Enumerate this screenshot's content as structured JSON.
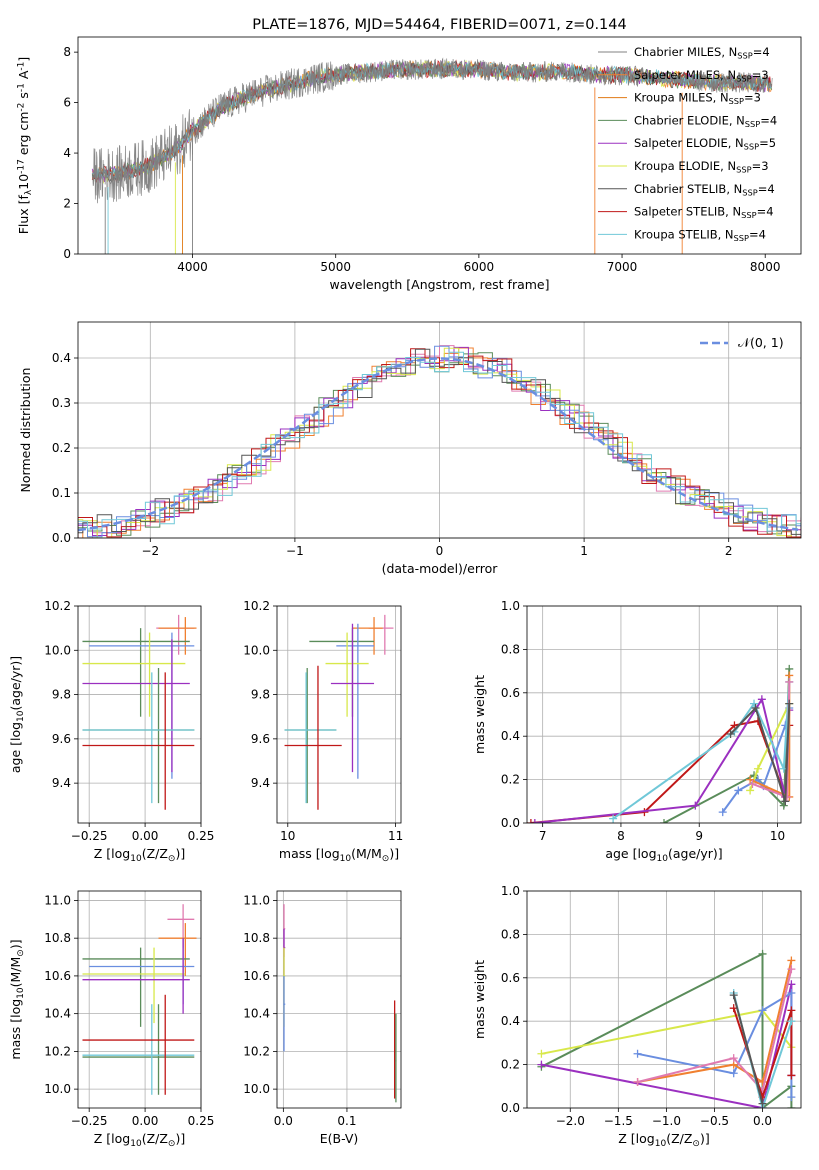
{
  "colors": {
    "Chabrier MILES": "#808080",
    "Salpeter MILES": "#f08030",
    "Kroupa MILES": "#e07a14",
    "Chabrier ELODIE": "#5a8c5a",
    "Salpeter ELODIE": "#9b30c0",
    "Kroupa ELODIE": "#d8e84a",
    "Chabrier STELIB": "#555555",
    "Salpeter STELIB": "#c01818",
    "Kroupa STELIB": "#70c8d8",
    "pink": "#e07ab0",
    "blue": "#6a8ee0",
    "gaussian": "#6a8ee0"
  },
  "chart_data": [
    {
      "id": "spectrum",
      "type": "line",
      "title": "PLATE=1876, MJD=54464, FIBERID=0071, z=0.144",
      "xlabel": "wavelength [Angstrom, rest frame]",
      "ylabel": "Flux [f$_\\lambda$10$^{-17}$ erg cm$^{-2}$ s$^{-1}$ A$^{-1}$]",
      "xlim": [
        3200,
        8250
      ],
      "ylim": [
        0,
        8.6
      ],
      "xticks": [
        "4000",
        "5000",
        "6000",
        "7000",
        "8000"
      ],
      "yticks": [
        "0",
        "2",
        "4",
        "6",
        "8"
      ],
      "legend": [
        "Chabrier MILES, N$_{SSP}$=4",
        "Salpeter MILES, N$_{SSP}$=3",
        "Kroupa MILES, N$_{SSP}$=3",
        "Chabrier ELODIE, N$_{SSP}$=4",
        "Salpeter ELODIE, N$_{SSP}$=5",
        "Kroupa ELODIE, N$_{SSP}$=3",
        "Chabrier STELIB, N$_{SSP}$=4",
        "Salpeter STELIB, N$_{SSP}$=4",
        "Kroupa STELIB, N$_{SSP}$=4"
      ],
      "continuum": {
        "x": [
          3300,
          3500,
          3700,
          3900,
          4000,
          4200,
          4400,
          4600,
          4800,
          5000,
          5200,
          5400,
          5600,
          5800,
          6000,
          6200,
          6400,
          6600,
          6800,
          7000,
          7200,
          7400,
          7600,
          7800,
          8000
        ],
        "y": [
          3.1,
          3.2,
          3.5,
          4.2,
          4.9,
          5.8,
          6.3,
          6.6,
          6.9,
          7.1,
          7.2,
          7.3,
          7.3,
          7.35,
          7.3,
          7.2,
          7.2,
          7.25,
          7.1,
          7.1,
          7.0,
          6.9,
          6.8,
          6.8,
          6.75
        ]
      }
    },
    {
      "id": "residuals",
      "type": "histogram",
      "xlabel": "(data-model)/error",
      "ylabel": "Normed distribution",
      "xlim": [
        -2.5,
        2.5
      ],
      "ylim": [
        0,
        0.48
      ],
      "xticks": [
        "−2",
        "−1",
        "0",
        "1",
        "2"
      ],
      "yticks": [
        "0.0",
        "0.1",
        "0.2",
        "0.3",
        "0.4"
      ],
      "legend": [
        "$\\mathcal{N}(0, 1)$"
      ],
      "base": {
        "x": [
          -2.5,
          -2.3,
          -2.1,
          -1.9,
          -1.7,
          -1.5,
          -1.3,
          -1.1,
          -0.9,
          -0.7,
          -0.5,
          -0.3,
          -0.1,
          0.1,
          0.3,
          0.5,
          0.7,
          0.9,
          1.1,
          1.3,
          1.5,
          1.7,
          1.9,
          2.1,
          2.3,
          2.5
        ],
        "y": [
          0.02,
          0.03,
          0.05,
          0.08,
          0.11,
          0.15,
          0.2,
          0.25,
          0.3,
          0.34,
          0.37,
          0.39,
          0.4,
          0.4,
          0.38,
          0.36,
          0.33,
          0.28,
          0.23,
          0.18,
          0.14,
          0.1,
          0.07,
          0.05,
          0.03,
          0.02
        ]
      }
    },
    {
      "id": "age_vs_Z",
      "type": "scatter",
      "xlabel": "Z [log$_{10}$(Z/Z$_\\odot$)]",
      "ylabel": "age  [log$_{10}$($age/yr$)]",
      "xlim": [
        -0.3,
        0.25
      ],
      "ylim": [
        9.22,
        10.2
      ],
      "xticks": [
        "−0.25",
        "0.00",
        "0.25"
      ],
      "yticks": [
        "9.4",
        "9.6",
        "9.8",
        "10.0",
        "10.2"
      ],
      "points": [
        {
          "x": 0.15,
          "y": 10.1,
          "ex": [
            0.05,
            0.22
          ],
          "ey": [
            9.98,
            10.16
          ],
          "c": "pink"
        },
        {
          "x": 0.18,
          "y": 10.1,
          "ex": [
            0.06,
            0.23
          ],
          "ey": [
            9.98,
            10.15
          ],
          "c": "Salpeter MILES"
        },
        {
          "x": -0.02,
          "y": 10.04,
          "ex": [
            -0.28,
            0.2
          ],
          "ey": [
            9.7,
            10.1
          ],
          "c": "Chabrier ELODIE"
        },
        {
          "x": 0.12,
          "y": 10.02,
          "ex": [
            -0.25,
            0.22
          ],
          "ey": [
            9.42,
            10.08
          ],
          "c": "blue"
        },
        {
          "x": 0.02,
          "y": 9.94,
          "ex": [
            -0.28,
            0.18
          ],
          "ey": [
            9.7,
            10.08
          ],
          "c": "Kroupa ELODIE"
        },
        {
          "x": 0.12,
          "y": 9.85,
          "ex": [
            -0.28,
            0.2
          ],
          "ey": [
            9.45,
            10.05
          ],
          "c": "Salpeter ELODIE"
        },
        {
          "x": 0.06,
          "y": 9.64,
          "ex": [
            -0.28,
            0.22
          ],
          "ey": [
            9.31,
            9.92
          ],
          "c": "Chabrier ELODIE"
        },
        {
          "x": 0.03,
          "y": 9.64,
          "ex": [
            -0.28,
            0.22
          ],
          "ey": [
            9.31,
            9.9
          ],
          "c": "Kroupa STELIB"
        },
        {
          "x": 0.09,
          "y": 9.57,
          "ex": [
            -0.28,
            0.22
          ],
          "ey": [
            9.28,
            9.9
          ],
          "c": "Salpeter STELIB"
        }
      ]
    },
    {
      "id": "age_vs_mass",
      "type": "scatter",
      "xlabel": "mass [log$_{10}$($M/M_\\odot$)]",
      "ylabel": "",
      "xlim": [
        9.9,
        11.05
      ],
      "ylim": [
        9.22,
        10.2
      ],
      "xticks": [
        "10",
        "11"
      ],
      "yticks": [
        "9.4",
        "9.6",
        "9.8",
        "10.0",
        "10.2"
      ],
      "points": [
        {
          "x": 10.9,
          "y": 10.1,
          "ex": [
            10.75,
            10.98
          ],
          "ey": [
            9.98,
            10.16
          ],
          "c": "pink"
        },
        {
          "x": 10.8,
          "y": 10.1,
          "ex": [
            10.6,
            10.88
          ],
          "ey": [
            9.98,
            10.15
          ],
          "c": "Salpeter MILES"
        },
        {
          "x": 10.6,
          "y": 10.04,
          "ex": [
            10.2,
            10.8
          ],
          "ey": [
            9.7,
            10.1
          ],
          "c": "Chabrier ELODIE"
        },
        {
          "x": 10.65,
          "y": 10.02,
          "ex": [
            10.45,
            10.8
          ],
          "ey": [
            9.42,
            10.12
          ],
          "c": "blue"
        },
        {
          "x": 10.55,
          "y": 9.94,
          "ex": [
            10.35,
            10.75
          ],
          "ey": [
            9.7,
            10.08
          ],
          "c": "Kroupa ELODIE"
        },
        {
          "x": 10.6,
          "y": 9.85,
          "ex": [
            10.4,
            10.8
          ],
          "ey": [
            9.45,
            10.12
          ],
          "c": "Salpeter ELODIE"
        },
        {
          "x": 10.18,
          "y": 9.64,
          "ex": [
            9.97,
            10.45
          ],
          "ey": [
            9.31,
            9.92
          ],
          "c": "Chabrier ELODIE"
        },
        {
          "x": 10.17,
          "y": 9.64,
          "ex": [
            9.97,
            10.45
          ],
          "ey": [
            9.31,
            9.9
          ],
          "c": "Kroupa STELIB"
        },
        {
          "x": 10.28,
          "y": 9.57,
          "ex": [
            9.97,
            10.5
          ],
          "ey": [
            9.28,
            9.93
          ],
          "c": "Salpeter STELIB"
        }
      ]
    },
    {
      "id": "weight_vs_age",
      "type": "line",
      "xlabel": "age  [log$_{10}$($age/yr$)]",
      "ylabel": "mass weight",
      "xlim": [
        6.8,
        10.3
      ],
      "ylim": [
        0,
        1.0
      ],
      "xticks": [
        "7",
        "8",
        "9",
        "10"
      ],
      "yticks": [
        "0.0",
        "0.2",
        "0.4",
        "0.6",
        "0.8",
        "1.0"
      ],
      "series": [
        {
          "c": "Salpeter STELIB",
          "x": [
            6.85,
            8.3,
            9.45,
            9.75,
            10.1,
            10.15
          ],
          "y": [
            0.0,
            0.05,
            0.45,
            0.47,
            0.12,
            0.45
          ]
        },
        {
          "c": "Chabrier ELODIE",
          "x": [
            8.55,
            9.7,
            10.08,
            10.15
          ],
          "y": [
            0.0,
            0.22,
            0.08,
            0.71
          ]
        },
        {
          "c": "Salpeter ELODIE",
          "x": [
            6.9,
            8.95,
            9.8,
            10.1,
            10.15
          ],
          "y": [
            0.0,
            0.08,
            0.57,
            0.12,
            0.52
          ]
        },
        {
          "c": "blue",
          "x": [
            9.3,
            9.5,
            9.75,
            9.82,
            10.1,
            10.15
          ],
          "y": [
            0.05,
            0.15,
            0.2,
            0.17,
            0.45,
            0.53
          ]
        },
        {
          "c": "Kroupa ELODIE",
          "x": [
            9.65,
            9.75,
            10.15
          ],
          "y": [
            0.15,
            0.25,
            0.55
          ]
        },
        {
          "c": "Salpeter MILES",
          "x": [
            9.65,
            10.15,
            10.15
          ],
          "y": [
            0.2,
            0.12,
            0.68
          ]
        },
        {
          "c": "Kroupa STELIB",
          "x": [
            7.9,
            9.45,
            9.7,
            10.08,
            10.15
          ],
          "y": [
            0.02,
            0.42,
            0.55,
            0.25,
            0.65
          ]
        },
        {
          "c": "pink",
          "x": [
            9.68,
            10.12,
            10.15
          ],
          "y": [
            0.18,
            0.12,
            0.65
          ]
        },
        {
          "c": "Chabrier STELIB",
          "x": [
            9.4,
            9.72,
            10.1,
            10.15
          ],
          "y": [
            0.41,
            0.53,
            0.1,
            0.55
          ]
        }
      ]
    },
    {
      "id": "mass_vs_Z",
      "type": "scatter",
      "xlabel": "Z [log$_{10}$(Z/Z$_\\odot$)]",
      "ylabel": "mass [log$_{10}$($M/M_\\odot$)]",
      "xlim": [
        -0.3,
        0.25
      ],
      "ylim": [
        9.9,
        11.05
      ],
      "xticks": [
        "−0.25",
        "0.00",
        "0.25"
      ],
      "yticks": [
        "10.0",
        "10.2",
        "10.4",
        "10.6",
        "10.8",
        "11.0"
      ],
      "points": [
        {
          "x": 0.17,
          "y": 10.9,
          "ex": [
            0.1,
            0.22
          ],
          "ey": [
            10.75,
            10.98
          ],
          "c": "pink"
        },
        {
          "x": 0.18,
          "y": 10.8,
          "ex": [
            0.06,
            0.23
          ],
          "ey": [
            10.6,
            10.88
          ],
          "c": "Salpeter MILES"
        },
        {
          "x": -0.02,
          "y": 10.69,
          "ex": [
            -0.28,
            0.2
          ],
          "ey": [
            10.33,
            10.75
          ],
          "c": "Chabrier ELODIE"
        },
        {
          "x": 0.17,
          "y": 10.65,
          "ex": [
            -0.25,
            0.22
          ],
          "ey": [
            10.45,
            10.8
          ],
          "c": "blue"
        },
        {
          "x": 0.04,
          "y": 10.61,
          "ex": [
            -0.28,
            0.18
          ],
          "ey": [
            10.35,
            10.75
          ],
          "c": "Kroupa ELODIE"
        },
        {
          "x": 0.17,
          "y": 10.58,
          "ex": [
            -0.28,
            0.2
          ],
          "ey": [
            10.4,
            10.8
          ],
          "c": "Salpeter ELODIE"
        },
        {
          "x": 0.06,
          "y": 10.17,
          "ex": [
            -0.28,
            0.22
          ],
          "ey": [
            9.97,
            10.45
          ],
          "c": "Chabrier ELODIE"
        },
        {
          "x": 0.03,
          "y": 10.18,
          "ex": [
            -0.28,
            0.22
          ],
          "ey": [
            9.97,
            10.45
          ],
          "c": "Kroupa STELIB"
        },
        {
          "x": 0.09,
          "y": 10.26,
          "ex": [
            -0.28,
            0.22
          ],
          "ey": [
            9.97,
            10.5
          ],
          "c": "Salpeter STELIB"
        }
      ]
    },
    {
      "id": "mass_vs_ebv",
      "type": "scatter",
      "xlabel": "E(B-V)",
      "ylabel": "",
      "xlim": [
        -0.01,
        0.185
      ],
      "ylim": [
        9.9,
        11.05
      ],
      "xticks": [
        "0.0",
        "0.1"
      ],
      "yticks": [
        "10.0",
        "10.2",
        "10.4",
        "10.6",
        "10.8",
        "11.0"
      ],
      "points": [
        {
          "x": 0.001,
          "y": 10.85,
          "ex": [
            0.0,
            0.003
          ],
          "ey": [
            10.7,
            10.98
          ],
          "c": "pink"
        },
        {
          "x": 0.001,
          "y": 10.75,
          "ex": [
            0.0,
            0.003
          ],
          "ey": [
            10.6,
            10.85
          ],
          "c": "Salpeter ELODIE"
        },
        {
          "x": 0.001,
          "y": 10.6,
          "ex": [
            0.0,
            0.003
          ],
          "ey": [
            10.33,
            10.75
          ],
          "c": "Kroupa ELODIE"
        },
        {
          "x": 0.001,
          "y": 10.45,
          "ex": [
            0.0,
            0.003
          ],
          "ey": [
            10.2,
            10.6
          ],
          "c": "blue"
        },
        {
          "x": 0.175,
          "y": 10.2,
          "ex": [
            0.174,
            0.176
          ],
          "ey": [
            9.95,
            10.47
          ],
          "c": "Salpeter STELIB"
        },
        {
          "x": 0.177,
          "y": 10.15,
          "ex": [
            0.176,
            0.178
          ],
          "ey": [
            9.93,
            10.4
          ],
          "c": "Chabrier ELODIE"
        }
      ]
    },
    {
      "id": "weight_vs_Z",
      "type": "line",
      "xlabel": "Z [log$_{10}$(Z/Z$_\\odot$)]",
      "ylabel": "mass weight",
      "xlim": [
        -2.45,
        0.4
      ],
      "ylim": [
        0,
        1.0
      ],
      "xticks": [
        "−2.0",
        "−1.5",
        "−1.0",
        "−0.5",
        "0.0"
      ],
      "yticks": [
        "0.0",
        "0.2",
        "0.4",
        "0.6",
        "0.8",
        "1.0"
      ],
      "series": [
        {
          "c": "Chabrier ELODIE",
          "x": [
            -2.3,
            0.0,
            0.0,
            0.3,
            0.3
          ],
          "y": [
            0.19,
            0.71,
            0.0,
            0.1,
            0.0
          ]
        },
        {
          "c": "Kroupa ELODIE",
          "x": [
            -2.3,
            0.0,
            0.3
          ],
          "y": [
            0.25,
            0.45,
            0.28
          ]
        },
        {
          "c": "Salpeter ELODIE",
          "x": [
            -2.3,
            0.0,
            0.3,
            0.3
          ],
          "y": [
            0.2,
            0.0,
            0.57,
            0.15
          ]
        },
        {
          "c": "blue",
          "x": [
            -1.3,
            -0.3,
            0.0,
            0.3,
            0.3
          ],
          "y": [
            0.25,
            0.16,
            0.45,
            0.53,
            0.05
          ]
        },
        {
          "c": "Salpeter MILES",
          "x": [
            -1.3,
            -0.3,
            0.0,
            0.3
          ],
          "y": [
            0.12,
            0.2,
            0.12,
            0.68
          ]
        },
        {
          "c": "pink",
          "x": [
            -1.3,
            -0.3,
            0.0,
            0.3
          ],
          "y": [
            0.12,
            0.23,
            0.08,
            0.64
          ]
        },
        {
          "c": "Salpeter STELIB",
          "x": [
            -0.3,
            0.0,
            0.3,
            0.3
          ],
          "y": [
            0.46,
            0.05,
            0.45,
            0.15
          ]
        },
        {
          "c": "Kroupa STELIB",
          "x": [
            -0.3,
            0.0,
            0.3
          ],
          "y": [
            0.53,
            0.0,
            0.4
          ]
        },
        {
          "c": "Chabrier STELIB",
          "x": [
            -0.3,
            0.0
          ],
          "y": [
            0.52,
            0.02
          ]
        }
      ]
    }
  ]
}
